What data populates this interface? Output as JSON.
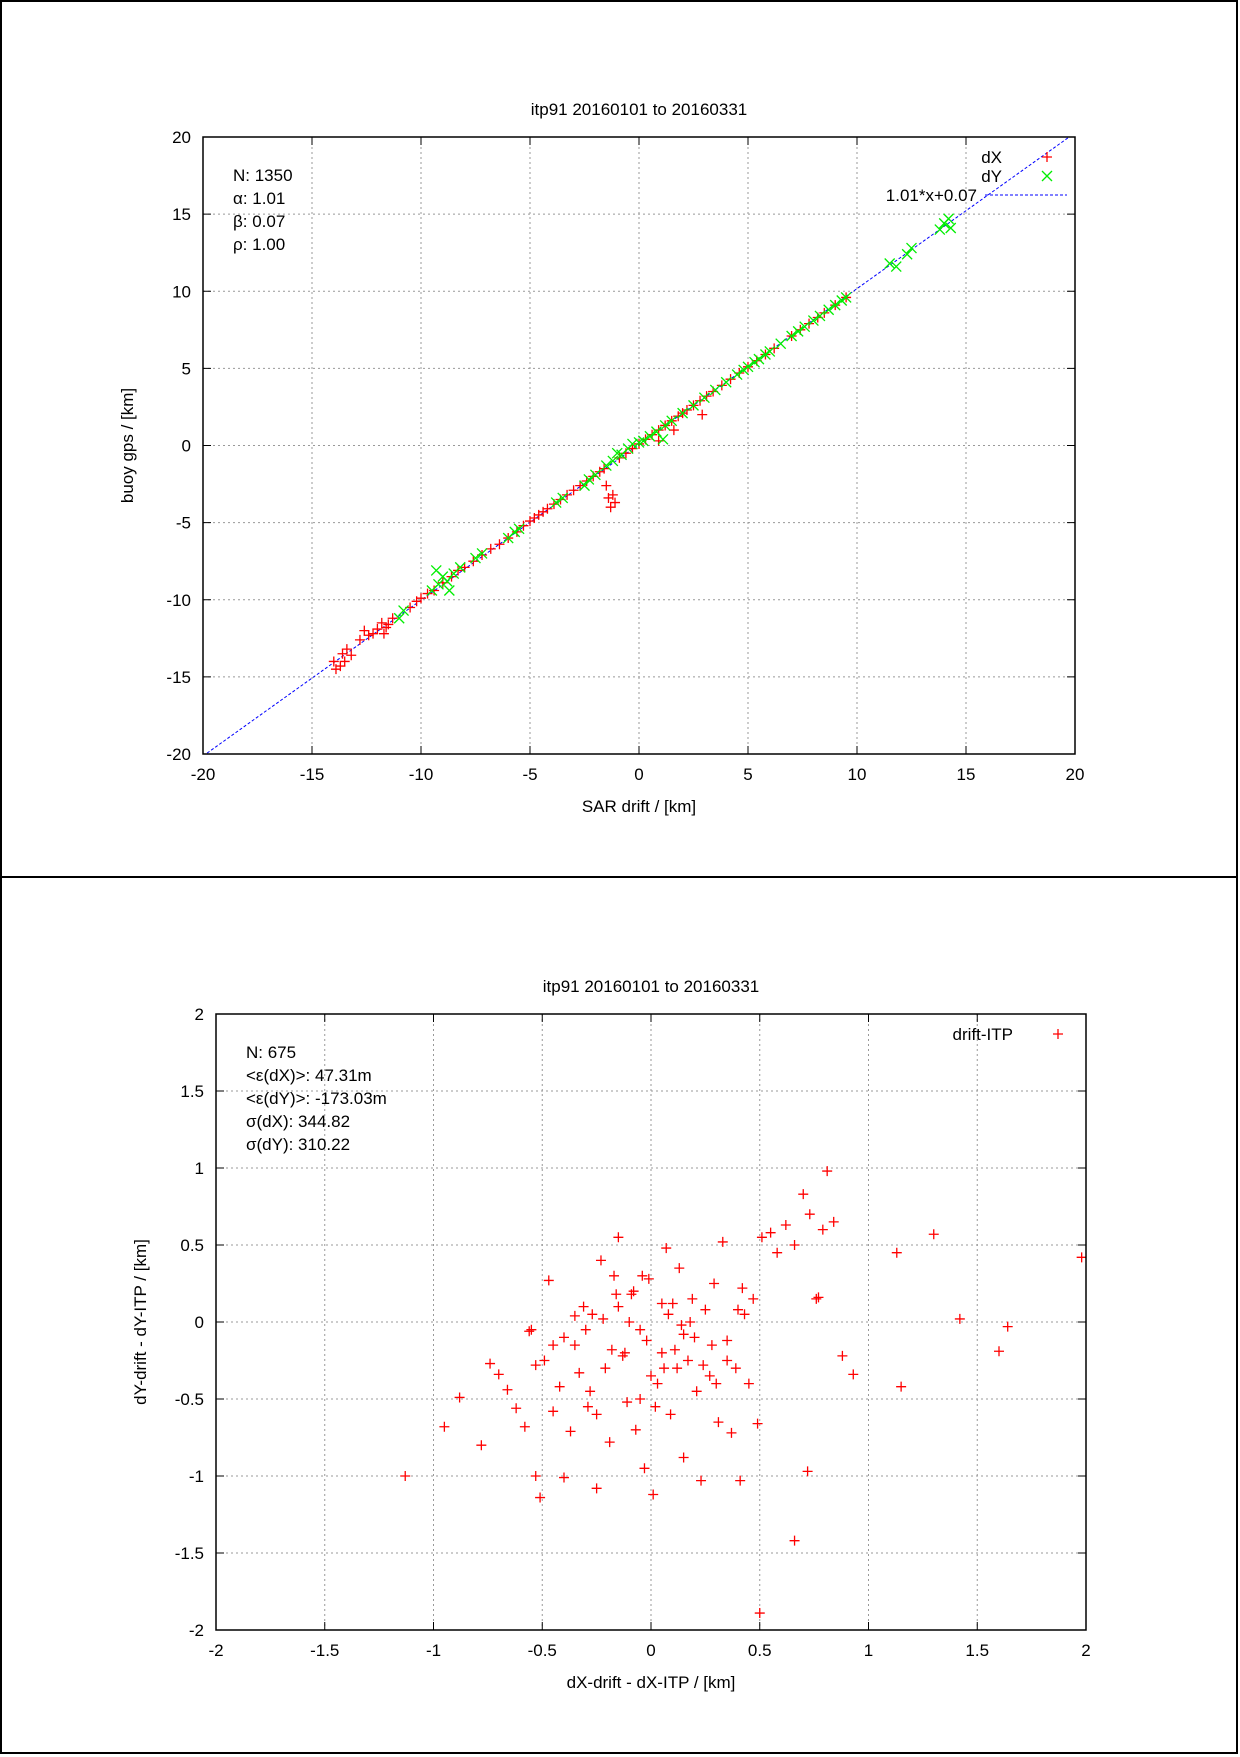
{
  "chart_data": [
    {
      "type": "scatter",
      "title": "itp91 20160101 to 20160331",
      "xlabel": "SAR drift / [km]",
      "ylabel": "buoy gps / [km]",
      "xlim": [
        -20,
        20
      ],
      "ylim": [
        -20,
        20
      ],
      "xticks": [
        "-20",
        "-15",
        "-10",
        "-5",
        "0",
        "5",
        "10",
        "15",
        "20"
      ],
      "yticks": [
        "20",
        "15",
        "10",
        "5",
        "0",
        "-5",
        "-10",
        "-15",
        "-20"
      ],
      "grid": true,
      "legend_position": "top-right",
      "stats": [
        "N: 1350",
        "α: 1.01",
        "β: 0.07",
        "ρ: 1.00"
      ],
      "fit": {
        "label": "1.01*x+0.07",
        "slope": 1.01,
        "intercept": 0.07,
        "color": "#0000ff"
      },
      "series": [
        {
          "name": "dX",
          "marker": "+",
          "color": "#ff0000",
          "x": [
            -14.0,
            -13.9,
            -13.6,
            -13.5,
            -13.4,
            -13.2,
            -12.8,
            -12.4,
            -12.2,
            -12.0,
            -11.8,
            -11.6,
            -11.5,
            -11.3,
            -10.5,
            -10.2,
            -10.0,
            -9.7,
            -9.4,
            -9.0,
            -8.6,
            -8.3,
            -8.0,
            -7.6,
            -7.2,
            -6.8,
            -6.4,
            -6.0,
            -5.6,
            -5.3,
            -5.0,
            -4.8,
            -4.6,
            -4.4,
            -4.2,
            -3.9,
            -3.6,
            -3.3,
            -3.0,
            -2.7,
            -2.4,
            -2.1,
            -1.8,
            -1.6,
            -1.5,
            -1.4,
            -1.3,
            -1.2,
            -1.1,
            -0.9,
            -0.6,
            -0.3,
            0.0,
            0.3,
            0.6,
            0.9,
            1.2,
            1.5,
            1.8,
            2.0,
            2.2,
            2.5,
            2.8,
            3.1,
            3.4,
            3.8,
            4.2,
            4.6,
            5.0,
            5.4,
            5.8,
            6.2,
            7.0,
            7.4,
            7.8,
            8.2,
            8.5,
            9.0,
            9.5,
            -11.7,
            -12.6,
            -13.7,
            1.6,
            0.9,
            2.9
          ],
          "y": [
            -14.0,
            -14.5,
            -13.5,
            -14.0,
            -13.2,
            -13.6,
            -12.6,
            -12.3,
            -12.2,
            -11.9,
            -11.5,
            -11.8,
            -11.6,
            -11.2,
            -10.5,
            -10.1,
            -9.9,
            -9.6,
            -9.4,
            -8.9,
            -8.5,
            -8.1,
            -7.9,
            -7.5,
            -7.1,
            -6.7,
            -6.4,
            -6.0,
            -5.6,
            -5.2,
            -4.9,
            -4.7,
            -4.5,
            -4.3,
            -4.1,
            -3.8,
            -3.5,
            -3.2,
            -2.9,
            -2.6,
            -2.3,
            -2.0,
            -1.7,
            -1.5,
            -2.6,
            -3.4,
            -4.0,
            -3.2,
            -3.7,
            -0.8,
            -0.5,
            -0.2,
            0.1,
            0.4,
            0.7,
            1.0,
            1.3,
            1.6,
            1.9,
            2.1,
            2.3,
            2.6,
            2.9,
            3.2,
            3.5,
            3.9,
            4.3,
            4.7,
            5.1,
            5.5,
            5.9,
            6.3,
            7.1,
            7.5,
            7.9,
            8.3,
            8.6,
            9.1,
            9.6,
            -12.2,
            -12.0,
            -14.3,
            1.0,
            0.3,
            2.0
          ]
        },
        {
          "name": "dY",
          "marker": "x",
          "color": "#00ee00",
          "x": [
            -11.0,
            -10.8,
            -9.5,
            -9.2,
            -9.0,
            -8.8,
            -8.5,
            -8.2,
            -7.5,
            -7.2,
            -6.0,
            -5.7,
            -5.5,
            -3.8,
            -3.5,
            -2.5,
            -2.3,
            -2.0,
            -1.5,
            -1.2,
            -1.0,
            -0.8,
            -0.5,
            -0.3,
            0.0,
            0.2,
            0.5,
            0.8,
            1.2,
            1.5,
            2.0,
            2.5,
            3.0,
            3.5,
            4.0,
            4.5,
            4.8,
            5.0,
            5.3,
            5.5,
            5.8,
            6.0,
            6.5,
            7.0,
            7.3,
            7.6,
            8.0,
            8.3,
            8.7,
            9.0,
            9.3,
            9.5,
            11.5,
            11.8,
            12.3,
            12.5,
            13.8,
            14.0,
            14.2,
            14.3,
            -9.3,
            -8.7,
            1.1
          ],
          "y": [
            -11.2,
            -10.7,
            -9.4,
            -9.0,
            -8.5,
            -8.8,
            -8.3,
            -7.9,
            -7.3,
            -7.0,
            -6.0,
            -5.6,
            -5.4,
            -3.7,
            -3.4,
            -2.6,
            -2.2,
            -1.9,
            -1.3,
            -1.0,
            -0.5,
            -0.6,
            -0.2,
            0.1,
            0.2,
            0.3,
            0.6,
            0.9,
            1.3,
            1.6,
            2.1,
            2.6,
            3.1,
            3.6,
            4.1,
            4.6,
            4.9,
            5.1,
            5.4,
            5.6,
            5.9,
            6.1,
            6.6,
            7.1,
            7.4,
            7.7,
            8.1,
            8.4,
            8.8,
            9.1,
            9.4,
            9.6,
            11.8,
            11.6,
            12.4,
            12.8,
            14.0,
            14.4,
            14.7,
            14.1,
            -8.1,
            -9.4,
            0.4
          ]
        }
      ]
    },
    {
      "type": "scatter",
      "title": "itp91 20160101 to 20160331",
      "xlabel": "dX-drift - dX-ITP / [km]",
      "ylabel": "dY-drift - dY-ITP / [km]",
      "xlim": [
        -2,
        2
      ],
      "ylim": [
        -2,
        2
      ],
      "xticks": [
        "-2",
        "-1.5",
        "-1",
        "-0.5",
        "0",
        "0.5",
        "1",
        "1.5",
        "2"
      ],
      "yticks": [
        "2",
        "1.5",
        "1",
        "0.5",
        "0",
        "-0.5",
        "-1",
        "-1.5",
        "-2"
      ],
      "grid": true,
      "legend_position": "top-right",
      "stats": [
        "N: 675",
        "<ε(dX)>:  47.31m",
        "<ε(dY)>: -173.03m",
        "σ(dX):  344.82",
        "σ(dY):  310.22"
      ],
      "series": [
        {
          "name": "drift-ITP",
          "marker": "+",
          "color": "#ff0000",
          "x": [
            -1.13,
            -0.95,
            -0.88,
            -0.78,
            -0.74,
            -0.7,
            -0.66,
            -0.62,
            -0.58,
            -0.56,
            -0.53,
            -0.51,
            -0.49,
            -0.47,
            -0.45,
            -0.42,
            -0.4,
            -0.37,
            -0.35,
            -0.33,
            -0.31,
            -0.29,
            -0.27,
            -0.25,
            -0.23,
            -0.21,
            -0.19,
            -0.17,
            -0.15,
            -0.13,
            -0.11,
            -0.09,
            -0.07,
            -0.05,
            -0.03,
            -0.01,
            0.01,
            0.03,
            0.05,
            0.07,
            0.09,
            0.11,
            0.13,
            0.15,
            0.17,
            0.19,
            0.21,
            0.23,
            0.25,
            0.27,
            0.29,
            0.31,
            0.33,
            0.35,
            0.37,
            0.39,
            0.41,
            0.43,
            0.45,
            0.47,
            0.49,
            0.51,
            0.55,
            0.58,
            0.62,
            0.66,
            0.7,
            0.73,
            0.76,
            0.79,
            0.81,
            0.84,
            0.88,
            0.93,
            1.13,
            1.15,
            1.3,
            1.42,
            1.6,
            1.64,
            1.98,
            0.5,
            0.66,
            -0.25,
            -0.05,
            0.02,
            -0.53,
            -0.55,
            -0.4,
            0.12,
            0.4,
            0.77,
            0.72,
            -0.1,
            0.2,
            -0.3,
            0.05,
            -0.15,
            0.28,
            -0.22,
            0.35,
            -0.45,
            0.15,
            0.08,
            -0.02,
            -0.12,
            0.18,
            0.24,
            -0.08,
            0.0,
            0.1,
            -0.18,
            0.3,
            -0.35,
            0.42,
            -0.28,
            0.06,
            -0.04,
            0.14,
            -0.16
          ],
          "y": [
            -1.0,
            -0.68,
            -0.49,
            -0.8,
            -0.27,
            -0.34,
            -0.44,
            -0.56,
            -0.68,
            -0.06,
            -1.0,
            -1.14,
            -0.25,
            0.27,
            -0.58,
            -0.42,
            -1.01,
            -0.71,
            -0.15,
            -0.33,
            0.1,
            -0.55,
            0.05,
            -1.08,
            0.4,
            -0.3,
            -0.78,
            0.3,
            0.55,
            -0.22,
            -0.52,
            0.18,
            -0.7,
            -0.05,
            -0.95,
            0.28,
            -1.12,
            -0.4,
            0.12,
            0.48,
            -0.6,
            -0.18,
            0.35,
            -0.88,
            -0.25,
            0.15,
            -0.45,
            -1.03,
            0.08,
            -0.35,
            0.25,
            -0.65,
            0.52,
            -0.12,
            -0.72,
            -0.3,
            -1.03,
            0.05,
            -0.4,
            0.15,
            -0.66,
            0.55,
            0.58,
            0.45,
            0.63,
            0.5,
            0.83,
            0.7,
            0.15,
            0.6,
            0.98,
            0.65,
            -0.22,
            -0.34,
            0.45,
            -0.42,
            0.57,
            0.02,
            -0.19,
            -0.03,
            0.42,
            -1.89,
            -1.42,
            -0.6,
            -0.5,
            -0.55,
            -0.28,
            -0.05,
            -0.1,
            -0.3,
            0.08,
            0.16,
            -0.97,
            0.0,
            -0.1,
            -0.05,
            -0.2,
            0.1,
            -0.15,
            0.02,
            -0.25,
            -0.15,
            -0.08,
            0.05,
            -0.12,
            -0.2,
            0.0,
            -0.28,
            0.2,
            -0.35,
            0.12,
            -0.18,
            -0.4,
            0.04,
            0.22,
            -0.45,
            -0.3,
            0.3,
            -0.02,
            0.18
          ]
        }
      ]
    }
  ]
}
